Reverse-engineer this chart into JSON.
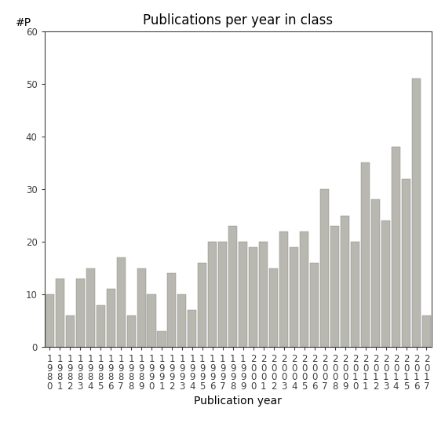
{
  "title": "Publications per year in class",
  "xlabel": "Publication year",
  "ylabel": "#P",
  "ylim": [
    0,
    60
  ],
  "yticks": [
    0,
    10,
    20,
    30,
    40,
    50,
    60
  ],
  "years": [
    1980,
    1981,
    1982,
    1983,
    1984,
    1985,
    1986,
    1987,
    1988,
    1989,
    1990,
    1991,
    1992,
    1993,
    1994,
    1995,
    1996,
    1997,
    1998,
    1999,
    2000,
    2001,
    2002,
    2003,
    2004,
    2005,
    2006,
    2007,
    2008,
    2009,
    2010,
    2011,
    2012,
    2013,
    2014,
    2015,
    2016,
    2017
  ],
  "values": [
    10,
    13,
    6,
    13,
    15,
    8,
    11,
    17,
    6,
    15,
    10,
    3,
    14,
    10,
    7,
    16,
    20,
    20,
    23,
    20,
    19,
    20,
    15,
    22,
    19,
    22,
    16,
    30,
    23,
    25,
    20,
    35,
    28,
    24,
    38,
    32,
    51,
    6
  ],
  "bar_color": "#b8b8b0",
  "bar_edge_color": "#808080",
  "bar_edge_width": 0.3,
  "background_color": "#ffffff",
  "title_fontsize": 12,
  "axis_label_fontsize": 10,
  "tick_fontsize": 8.5
}
